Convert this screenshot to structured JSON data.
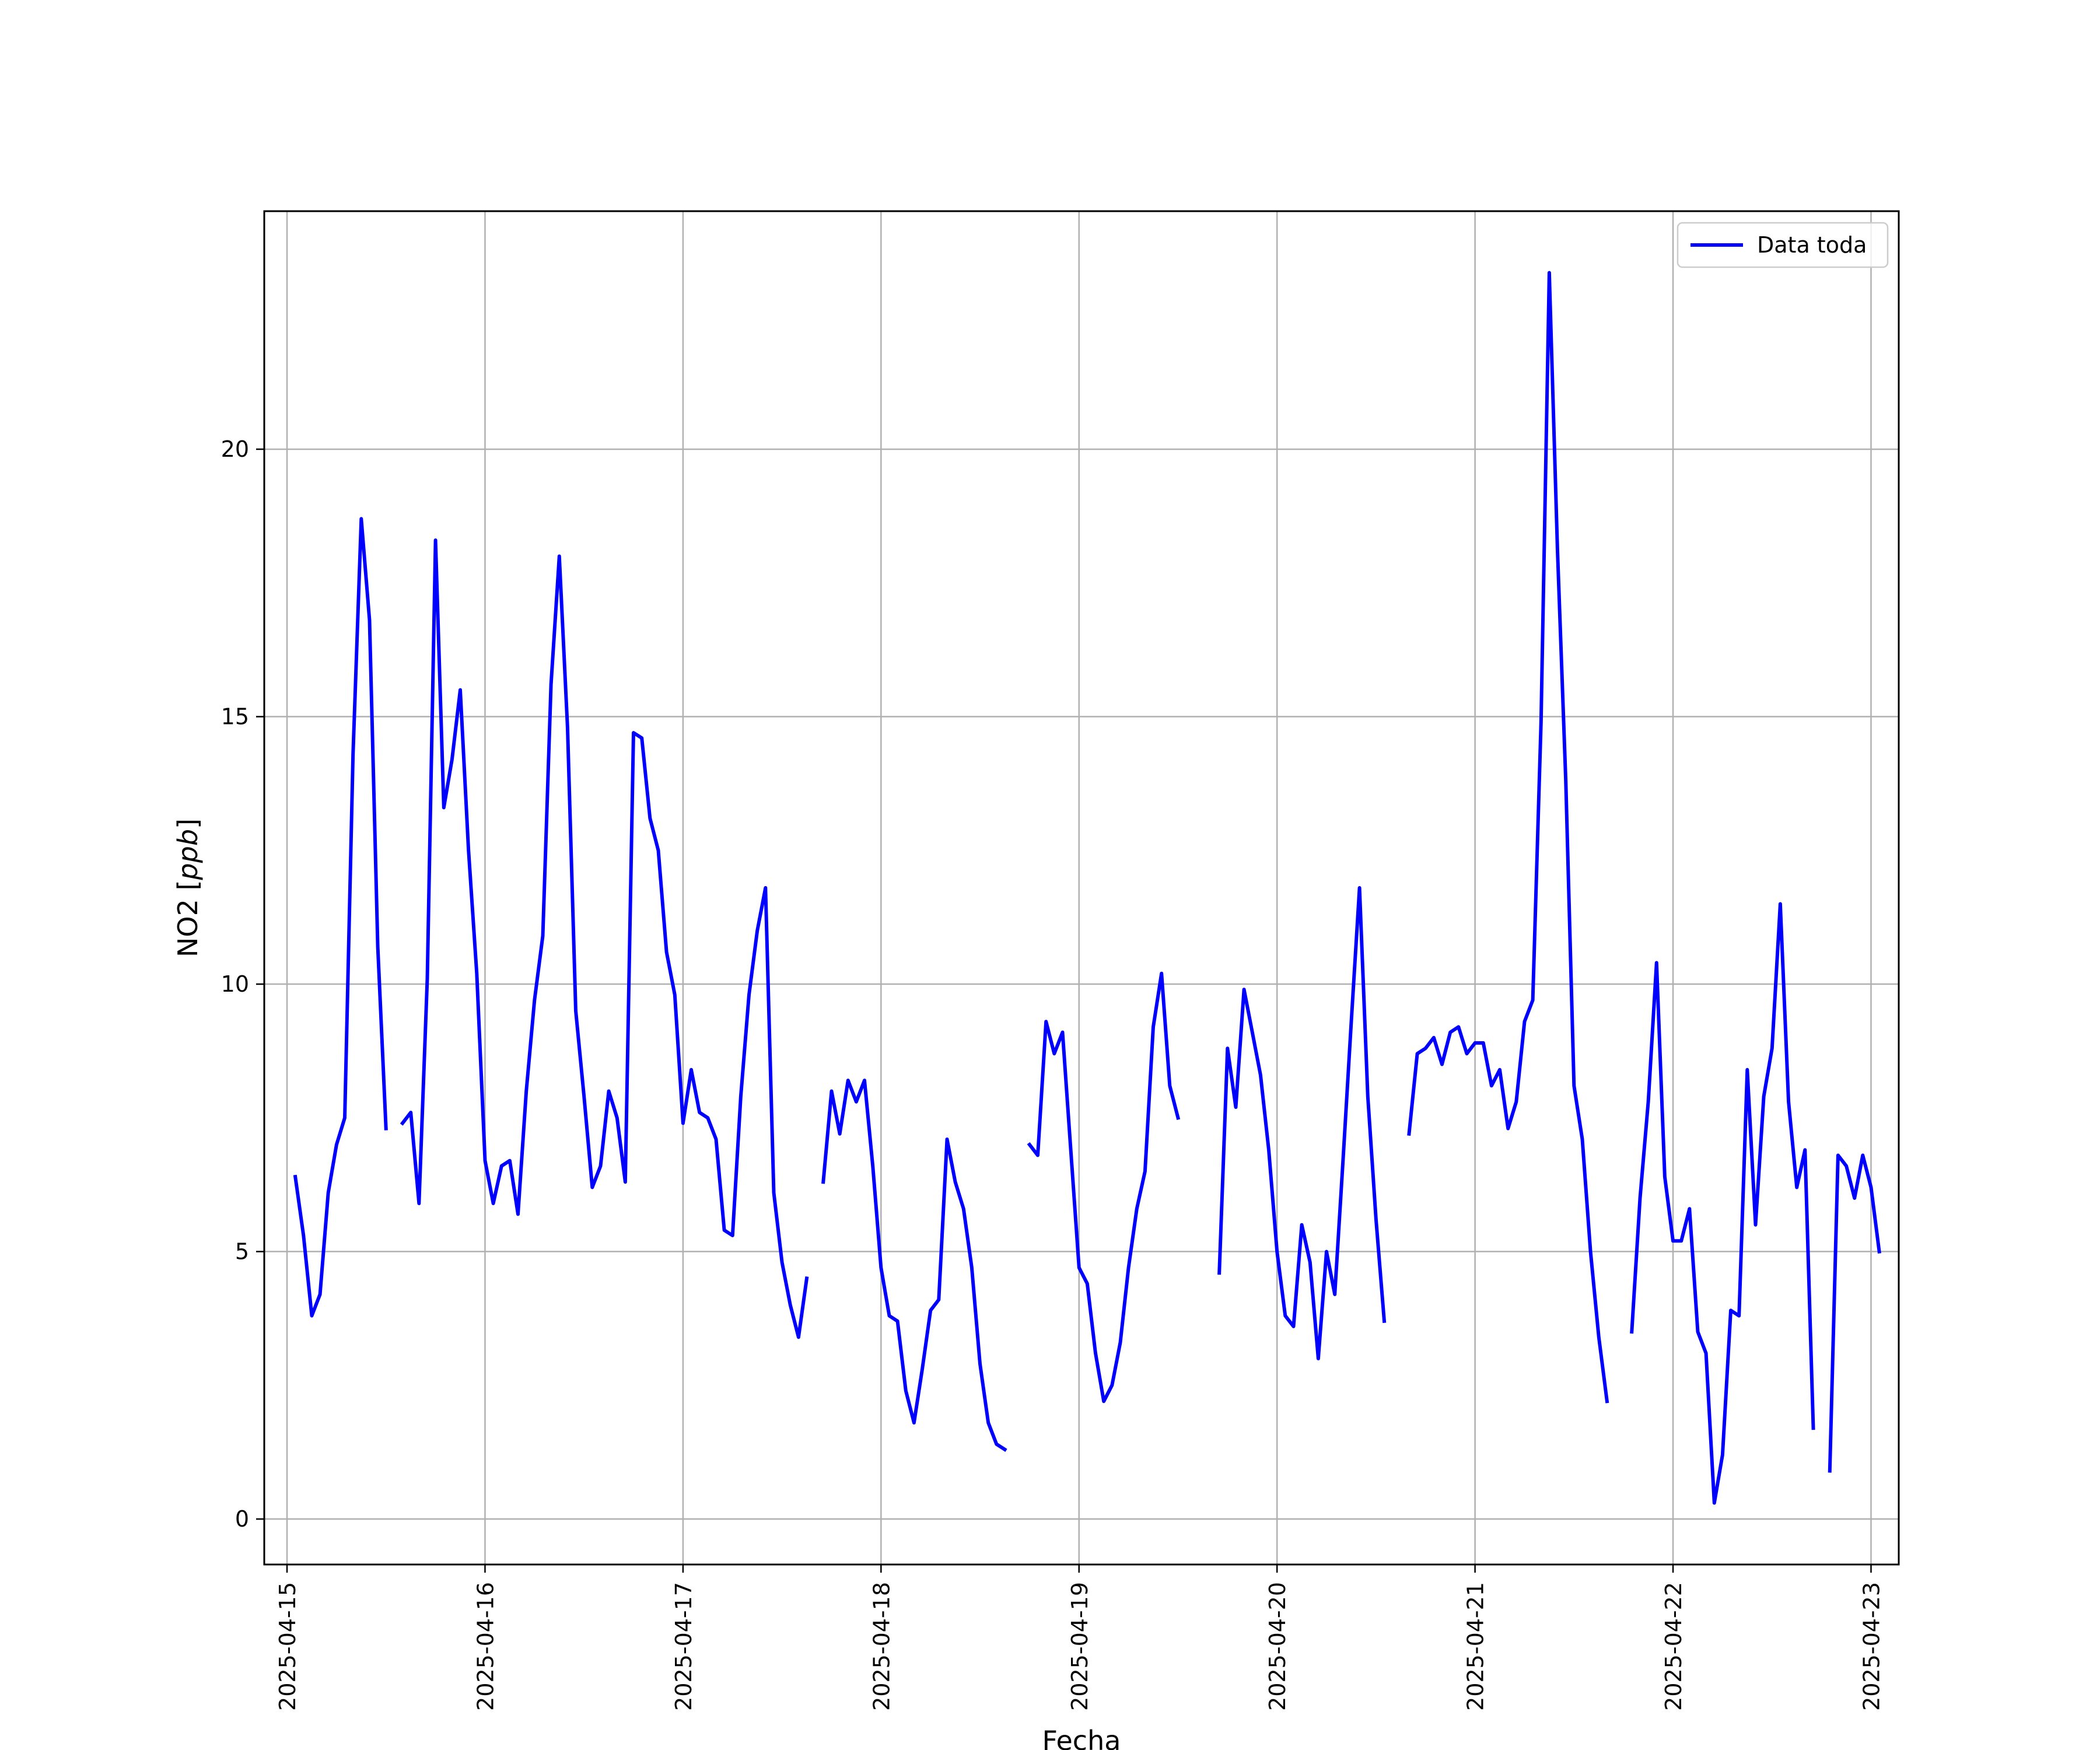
{
  "chart_data": {
    "type": "line",
    "xlabel": "Fecha",
    "ylabel": "NO2 [ppb]",
    "ylabel_parts": {
      "main": "NO2 [",
      "unit": "ppb",
      "end": "]"
    },
    "x_ticks": [
      "2025-04-15",
      "2025-04-16",
      "2025-04-17",
      "2025-04-18",
      "2025-04-19",
      "2025-04-20",
      "2025-04-21",
      "2025-04-22",
      "2025-04-23"
    ],
    "y_ticks": [
      "0",
      "5",
      "10",
      "15",
      "20"
    ],
    "xlim": [
      -0.115,
      8.14
    ],
    "ylim": [
      -0.85,
      24.45
    ],
    "grid": true,
    "legend_position": "top-right",
    "series": [
      {
        "name": "Data toda",
        "color": "#0000ff",
        "x_unit": "days since 2025-04-15 (hourly samples)",
        "segments": [
          {
            "start_hour": 1,
            "values": [
              6.4,
              5.3,
              3.8,
              4.2,
              6.1,
              7.0,
              7.5,
              14.3,
              18.7,
              16.8,
              10.7,
              7.3
            ]
          },
          {
            "start_hour": 14,
            "values": [
              7.4,
              7.6,
              5.9,
              10.1,
              18.3,
              13.3,
              14.2,
              15.5,
              12.5,
              10.2,
              6.7,
              5.9,
              6.6,
              6.7,
              5.7,
              8.0,
              9.7,
              10.9,
              15.6,
              18.0,
              14.8,
              9.5,
              7.9,
              6.2,
              6.6,
              8.0,
              7.5,
              6.3,
              14.7,
              14.6,
              13.1,
              12.5,
              10.6,
              9.8,
              7.4,
              8.4,
              7.6,
              7.5,
              7.1,
              5.4,
              5.3,
              7.9,
              9.8,
              11.0,
              11.8,
              6.1,
              4.8,
              4.0,
              3.4,
              4.5
            ]
          },
          {
            "start_hour": 65,
            "values": [
              6.3,
              8.0,
              7.2,
              8.2,
              7.8,
              8.2,
              6.6,
              4.7,
              3.8,
              3.7,
              2.4,
              1.8,
              2.8,
              3.9,
              4.1,
              7.1,
              6.3,
              5.8,
              4.7,
              2.9,
              1.8,
              1.4,
              1.3
            ]
          },
          {
            "start_hour": 90,
            "values": [
              7.0,
              6.8,
              9.3,
              8.7,
              9.1,
              6.9,
              4.7,
              4.4,
              3.1,
              2.2,
              2.5,
              3.3,
              4.7,
              5.8,
              6.5,
              9.2,
              10.2,
              8.1,
              7.5
            ]
          },
          {
            "start_hour": 113,
            "values": [
              4.6,
              8.8,
              7.7,
              9.9,
              9.1,
              8.3,
              6.9,
              5.0,
              3.8,
              3.6,
              5.5,
              4.8,
              3.0,
              5.0,
              4.2,
              6.7,
              9.3,
              11.8,
              7.9,
              5.6,
              3.7
            ]
          },
          {
            "start_hour": 136,
            "values": [
              7.2,
              8.7,
              8.8,
              9.0,
              8.5,
              9.1,
              9.2,
              8.7,
              8.9,
              8.9,
              8.1,
              8.4,
              7.3,
              7.8,
              9.3,
              9.7,
              14.9,
              23.3,
              18.1,
              13.8,
              8.1,
              7.1,
              5.0,
              3.4,
              2.2
            ]
          },
          {
            "start_hour": 163,
            "values": [
              3.5,
              6.0,
              7.8,
              10.4,
              6.4,
              5.2,
              5.2,
              5.8,
              3.5,
              3.1,
              0.3,
              1.2,
              3.9,
              3.8,
              8.4,
              5.5,
              7.9,
              8.8,
              11.5,
              7.8,
              6.2,
              6.9,
              1.7
            ]
          },
          {
            "start_hour": 187,
            "values": [
              0.9,
              6.8,
              6.6,
              6.0,
              6.8,
              6.2,
              5.0
            ]
          }
        ]
      }
    ]
  }
}
